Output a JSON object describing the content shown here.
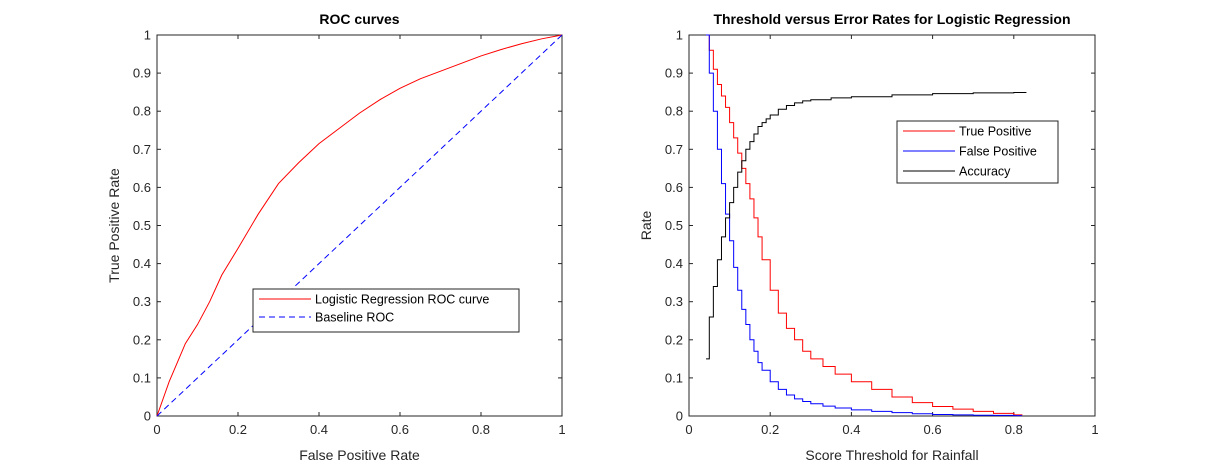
{
  "figure": {
    "background": "#ffffff",
    "axis_color": "#262626"
  },
  "chart_data": [
    {
      "type": "line",
      "title": "ROC curves",
      "xlabel": "False Positive Rate",
      "ylabel": "True Positive Rate",
      "xlim": [
        0,
        1
      ],
      "ylim": [
        0,
        1
      ],
      "xticks": [
        "0",
        "0.2",
        "0.4",
        "0.6",
        "0.8",
        "1"
      ],
      "yticks": [
        "0",
        "0.1",
        "0.2",
        "0.3",
        "0.4",
        "0.5",
        "0.6",
        "0.7",
        "0.8",
        "0.9",
        "1"
      ],
      "grid": false,
      "legend_position": "center-right",
      "series": [
        {
          "name": "Logistic Regression ROC curve",
          "color": "#ff0000",
          "style": "solid",
          "x": [
            0,
            0.01,
            0.02,
            0.03,
            0.05,
            0.07,
            0.1,
            0.13,
            0.16,
            0.2,
            0.25,
            0.3,
            0.35,
            0.4,
            0.45,
            0.5,
            0.55,
            0.6,
            0.65,
            0.7,
            0.75,
            0.8,
            0.85,
            0.9,
            0.95,
            1.0
          ],
          "y": [
            0,
            0.03,
            0.06,
            0.09,
            0.14,
            0.19,
            0.24,
            0.3,
            0.37,
            0.44,
            0.53,
            0.61,
            0.665,
            0.715,
            0.755,
            0.795,
            0.83,
            0.86,
            0.885,
            0.905,
            0.925,
            0.945,
            0.962,
            0.977,
            0.99,
            1.0
          ]
        },
        {
          "name": "Baseline ROC",
          "color": "#0000ff",
          "style": "dashed",
          "x": [
            0,
            1
          ],
          "y": [
            0,
            1
          ]
        }
      ]
    },
    {
      "type": "line",
      "title": "Threshold versus Error Rates for Logistic Regression",
      "xlabel": "Score Threshold for Rainfall",
      "ylabel": "Rate",
      "xlim": [
        0,
        1
      ],
      "ylim": [
        0,
        1
      ],
      "xticks": [
        "0",
        "0.2",
        "0.4",
        "0.6",
        "0.8",
        "1"
      ],
      "yticks": [
        "0",
        "0.1",
        "0.2",
        "0.3",
        "0.4",
        "0.5",
        "0.6",
        "0.7",
        "0.8",
        "0.9",
        "1"
      ],
      "grid": false,
      "legend_position": "top-right",
      "series": [
        {
          "name": "True Positive",
          "color": "#ff0000",
          "style": "step",
          "x": [
            0.042,
            0.05,
            0.06,
            0.07,
            0.08,
            0.09,
            0.1,
            0.11,
            0.12,
            0.13,
            0.14,
            0.15,
            0.16,
            0.17,
            0.18,
            0.2,
            0.22,
            0.24,
            0.26,
            0.28,
            0.3,
            0.33,
            0.36,
            0.4,
            0.45,
            0.5,
            0.55,
            0.6,
            0.65,
            0.7,
            0.75,
            0.8,
            0.82
          ],
          "y": [
            1.0,
            0.96,
            0.91,
            0.87,
            0.84,
            0.81,
            0.77,
            0.73,
            0.69,
            0.65,
            0.61,
            0.57,
            0.52,
            0.47,
            0.41,
            0.33,
            0.27,
            0.23,
            0.2,
            0.17,
            0.15,
            0.13,
            0.11,
            0.09,
            0.07,
            0.05,
            0.035,
            0.025,
            0.018,
            0.012,
            0.007,
            0.003,
            0.002
          ]
        },
        {
          "name": "False Positive",
          "color": "#0000ff",
          "style": "step",
          "x": [
            0.042,
            0.05,
            0.06,
            0.07,
            0.08,
            0.09,
            0.1,
            0.11,
            0.12,
            0.13,
            0.14,
            0.15,
            0.16,
            0.17,
            0.18,
            0.2,
            0.22,
            0.24,
            0.26,
            0.28,
            0.3,
            0.33,
            0.36,
            0.4,
            0.45,
            0.5,
            0.55,
            0.6,
            0.65,
            0.7,
            0.75,
            0.8,
            0.82
          ],
          "y": [
            1.0,
            0.9,
            0.8,
            0.7,
            0.61,
            0.53,
            0.46,
            0.39,
            0.33,
            0.28,
            0.24,
            0.2,
            0.17,
            0.14,
            0.12,
            0.09,
            0.07,
            0.055,
            0.045,
            0.038,
            0.032,
            0.026,
            0.021,
            0.016,
            0.012,
            0.009,
            0.006,
            0.004,
            0.003,
            0.002,
            0.0015,
            0.001,
            0.001
          ]
        },
        {
          "name": "Accuracy",
          "color": "#000000",
          "style": "step",
          "x": [
            0.042,
            0.05,
            0.06,
            0.07,
            0.08,
            0.09,
            0.1,
            0.11,
            0.12,
            0.13,
            0.14,
            0.15,
            0.16,
            0.17,
            0.18,
            0.19,
            0.2,
            0.22,
            0.24,
            0.26,
            0.28,
            0.3,
            0.35,
            0.4,
            0.5,
            0.6,
            0.7,
            0.8,
            0.83
          ],
          "y": [
            0.15,
            0.26,
            0.34,
            0.41,
            0.47,
            0.52,
            0.56,
            0.6,
            0.64,
            0.67,
            0.7,
            0.72,
            0.74,
            0.76,
            0.77,
            0.78,
            0.79,
            0.805,
            0.815,
            0.822,
            0.827,
            0.83,
            0.835,
            0.838,
            0.843,
            0.846,
            0.848,
            0.849,
            0.85
          ]
        }
      ]
    }
  ]
}
